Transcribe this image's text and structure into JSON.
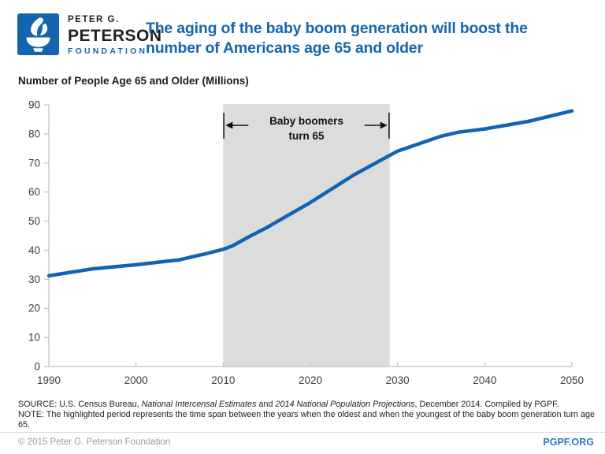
{
  "header": {
    "logo": {
      "line1": "PETER G.",
      "line2": "PETERSON",
      "line3": "FOUNDATION",
      "brand_color": "#1565ae"
    },
    "title": "The aging of the baby boom generation will boost the number of Americans age 65 and older",
    "title_lines": [
      "The aging of the baby boom generation will boost the",
      "number of Americans age 65 and older"
    ],
    "title_color": "#1566ad"
  },
  "chart_subtitle": "Number of People Age 65 and Older (Millions)",
  "chart_data": {
    "type": "line",
    "title": "Number of People Age 65 and Older (Millions)",
    "xlabel": "",
    "ylabel": "Number of People Age 65 and Older (Millions)",
    "xlim": [
      1990,
      2050
    ],
    "ylim": [
      0,
      90
    ],
    "x_ticks": [
      1990,
      2000,
      2010,
      2020,
      2030,
      2040,
      2050
    ],
    "y_ticks": [
      0,
      10,
      20,
      30,
      40,
      50,
      60,
      70,
      80,
      90
    ],
    "grid": false,
    "legend": false,
    "line_color": "#1263b2",
    "line_width": 4.5,
    "axis_color": "#b3b3b3",
    "series": [
      {
        "name": "Number of people age 65 and older (millions)",
        "x": [
          1990,
          1995,
          2000,
          2005,
          2008,
          2010,
          2011,
          2013,
          2015,
          2020,
          2025,
          2030,
          2035,
          2037,
          2040,
          2045,
          2050
        ],
        "values": [
          31.2,
          33.6,
          35.0,
          36.7,
          38.8,
          40.3,
          41.4,
          44.7,
          47.8,
          56.4,
          65.9,
          74.1,
          79.2,
          80.6,
          81.7,
          84.3,
          87.9
        ]
      }
    ],
    "highlight_band": {
      "start_year": 2010,
      "end_year": 2029.1,
      "color": "#dcdcdc",
      "label_line1": "Baby boomers",
      "label_line2": "turn 65"
    }
  },
  "source": {
    "prefix": "SOURCE: U.S. Census Bureau, ",
    "italic1": "National Intercensal Estimates",
    "mid": " and ",
    "italic2": "2014 National Population Projections",
    "suffix": ", December 2014. Compiled by PGPF."
  },
  "note": "NOTE: The highlighted period represents the time span between the years when the oldest and when the youngest of the baby boom generation turn age 65.",
  "footer": {
    "copyright": "© 2015 Peter G. Peterson Foundation",
    "site": "PGPF.ORG"
  }
}
